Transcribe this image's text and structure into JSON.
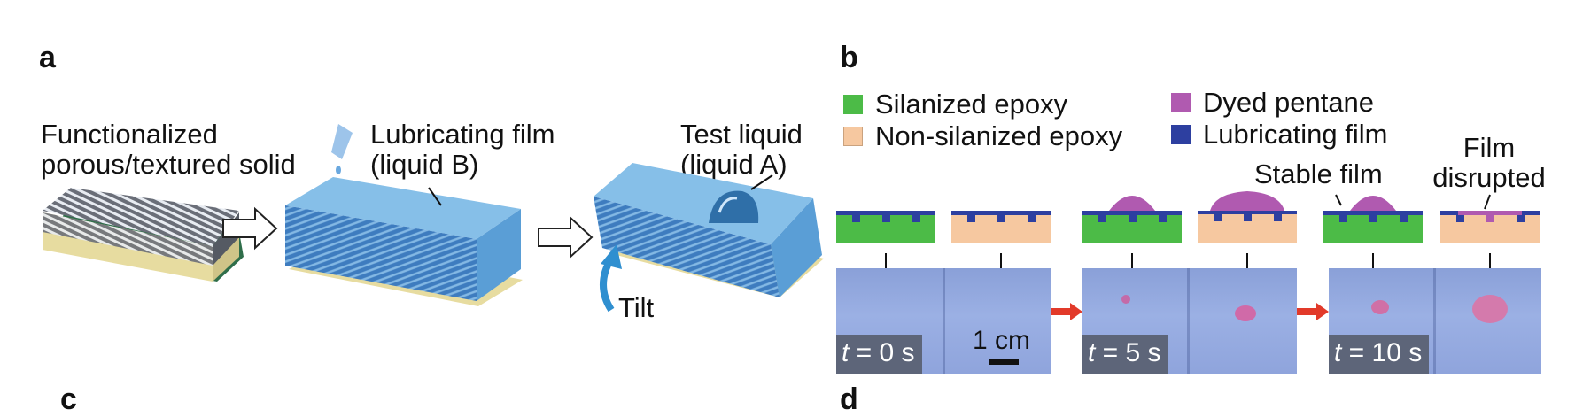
{
  "panel_a": {
    "letter": "a",
    "label_solid": [
      "Functionalized",
      "porous/textured solid"
    ],
    "label_film": [
      "Lubricating film",
      "(liquid B)"
    ],
    "label_test": [
      "Test liquid",
      "(liquid A)"
    ],
    "tilt": "Tilt"
  },
  "panel_b": {
    "letter": "b",
    "legend": [
      {
        "label": "Silanized epoxy",
        "color": "#4cbb47"
      },
      {
        "label": "Non-silanized epoxy",
        "color": "#f6c8a0"
      },
      {
        "label": "Dyed pentane",
        "color": "#b05ab0"
      },
      {
        "label": "Lubricating film",
        "color": "#2d3fa0"
      }
    ],
    "stable_film": "Stable film",
    "film_disrupted": [
      "Film",
      "disrupted"
    ],
    "t0": {
      "var": "t",
      "rest": " = 0 s"
    },
    "t5": {
      "var": "t",
      "rest": " = 5 s"
    },
    "t10": {
      "var": "t",
      "rest": " = 10 s"
    },
    "scale": "1 cm"
  },
  "bottom_letters": {
    "c": "c",
    "d": "d"
  }
}
